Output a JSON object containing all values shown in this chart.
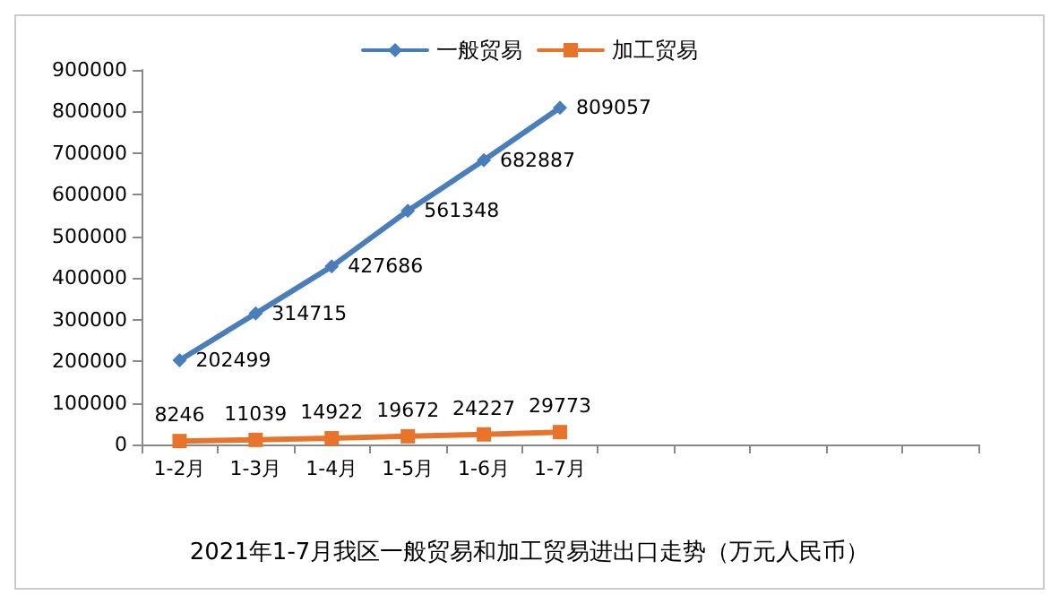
{
  "chart_data": {
    "type": "line",
    "title": "2021年1-7月我区一般贸易和加工贸易进出口走势（万元人民币）",
    "categories": [
      "1-2月",
      "1-3月",
      "1-4月",
      "1-5月",
      "1-6月",
      "1-7月",
      null,
      null,
      null,
      null,
      null
    ],
    "series": [
      {
        "name": "一般贸易",
        "color": "#4a7ebb",
        "marker": "diamond",
        "values": [
          202499,
          314715,
          427686,
          561348,
          682887,
          809057,
          null,
          null,
          null,
          null,
          null
        ]
      },
      {
        "name": "加工贸易",
        "color": "#e8742c",
        "marker": "square",
        "values": [
          8246,
          11039,
          14922,
          19672,
          24227,
          29773,
          null,
          null,
          null,
          null,
          null
        ]
      }
    ],
    "ylim": [
      0,
      900000
    ],
    "yticks": [
      0,
      100000,
      200000,
      300000,
      400000,
      500000,
      600000,
      700000,
      800000,
      900000
    ],
    "data_labels": true,
    "legend": "top",
    "grid": false
  }
}
